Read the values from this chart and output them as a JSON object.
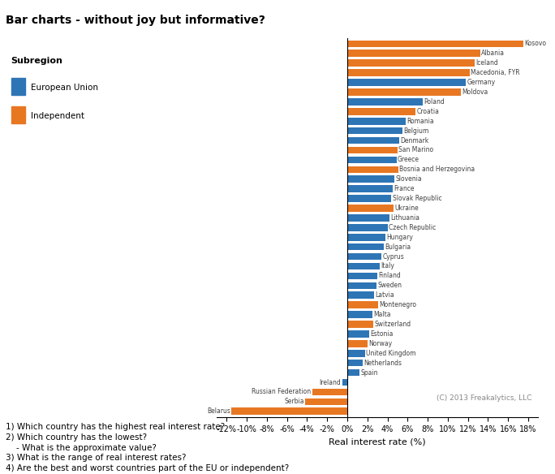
{
  "title": "Bar charts - without joy but informative?",
  "xlabel": "Real interest rate (%)",
  "eu_color": "#2E75B6",
  "ind_color": "#E87722",
  "xlim": [
    -13,
    19
  ],
  "xticks": [
    -12,
    -10,
    -8,
    -6,
    -4,
    -2,
    0,
    2,
    4,
    6,
    8,
    10,
    12,
    14,
    16,
    18
  ],
  "copyright": "(C) 2013 Freakalytics, LLC",
  "countries": [
    {
      "name": "Kosovo",
      "value": 17.5,
      "type": "Independent"
    },
    {
      "name": "Albania",
      "value": 13.2,
      "type": "Independent"
    },
    {
      "name": "Iceland",
      "value": 12.7,
      "type": "Independent"
    },
    {
      "name": "Macedonia, FYR",
      "value": 12.2,
      "type": "Independent"
    },
    {
      "name": "Germany",
      "value": 11.8,
      "type": "European Union"
    },
    {
      "name": "Moldova",
      "value": 11.3,
      "type": "Independent"
    },
    {
      "name": "Poland",
      "value": 7.5,
      "type": "European Union"
    },
    {
      "name": "Croatia",
      "value": 6.8,
      "type": "Independent"
    },
    {
      "name": "Romania",
      "value": 5.8,
      "type": "European Union"
    },
    {
      "name": "Belgium",
      "value": 5.5,
      "type": "European Union"
    },
    {
      "name": "Denmark",
      "value": 5.2,
      "type": "European Union"
    },
    {
      "name": "San Marino",
      "value": 5.0,
      "type": "Independent"
    },
    {
      "name": "Greece",
      "value": 4.9,
      "type": "European Union"
    },
    {
      "name": "Bosnia and Herzegovina",
      "value": 5.1,
      "type": "Independent"
    },
    {
      "name": "Slovenia",
      "value": 4.7,
      "type": "European Union"
    },
    {
      "name": "France",
      "value": 4.5,
      "type": "European Union"
    },
    {
      "name": "Slovak Republic",
      "value": 4.4,
      "type": "European Union"
    },
    {
      "name": "Ukraine",
      "value": 4.6,
      "type": "Independent"
    },
    {
      "name": "Lithuania",
      "value": 4.2,
      "type": "European Union"
    },
    {
      "name": "Czech Republic",
      "value": 4.0,
      "type": "European Union"
    },
    {
      "name": "Hungary",
      "value": 3.8,
      "type": "European Union"
    },
    {
      "name": "Bulgaria",
      "value": 3.6,
      "type": "European Union"
    },
    {
      "name": "Cyprus",
      "value": 3.4,
      "type": "European Union"
    },
    {
      "name": "Italy",
      "value": 3.2,
      "type": "European Union"
    },
    {
      "name": "Finland",
      "value": 3.0,
      "type": "European Union"
    },
    {
      "name": "Sweden",
      "value": 2.9,
      "type": "European Union"
    },
    {
      "name": "Latvia",
      "value": 2.7,
      "type": "European Union"
    },
    {
      "name": "Montenegro",
      "value": 3.1,
      "type": "Independent"
    },
    {
      "name": "Malta",
      "value": 2.5,
      "type": "European Union"
    },
    {
      "name": "Switzerland",
      "value": 2.6,
      "type": "Independent"
    },
    {
      "name": "Estonia",
      "value": 2.2,
      "type": "European Union"
    },
    {
      "name": "Norway",
      "value": 2.0,
      "type": "Independent"
    },
    {
      "name": "United Kingdom",
      "value": 1.8,
      "type": "European Union"
    },
    {
      "name": "Netherlands",
      "value": 1.5,
      "type": "European Union"
    },
    {
      "name": "Spain",
      "value": 1.2,
      "type": "European Union"
    },
    {
      "name": "Ireland",
      "value": -0.5,
      "type": "European Union"
    },
    {
      "name": "Russian Federation",
      "value": -3.5,
      "type": "Independent"
    },
    {
      "name": "Serbia",
      "value": -4.2,
      "type": "Independent"
    },
    {
      "name": "Belarus",
      "value": -11.5,
      "type": "Independent"
    }
  ],
  "questions": [
    "1) Which country has the highest real interest rate?",
    "2) Which country has the lowest?",
    "    - What is the approximate value?",
    "3) What is the range of real interest rates?",
    "4) Are the best and worst countries part of the EU or independent?"
  ]
}
